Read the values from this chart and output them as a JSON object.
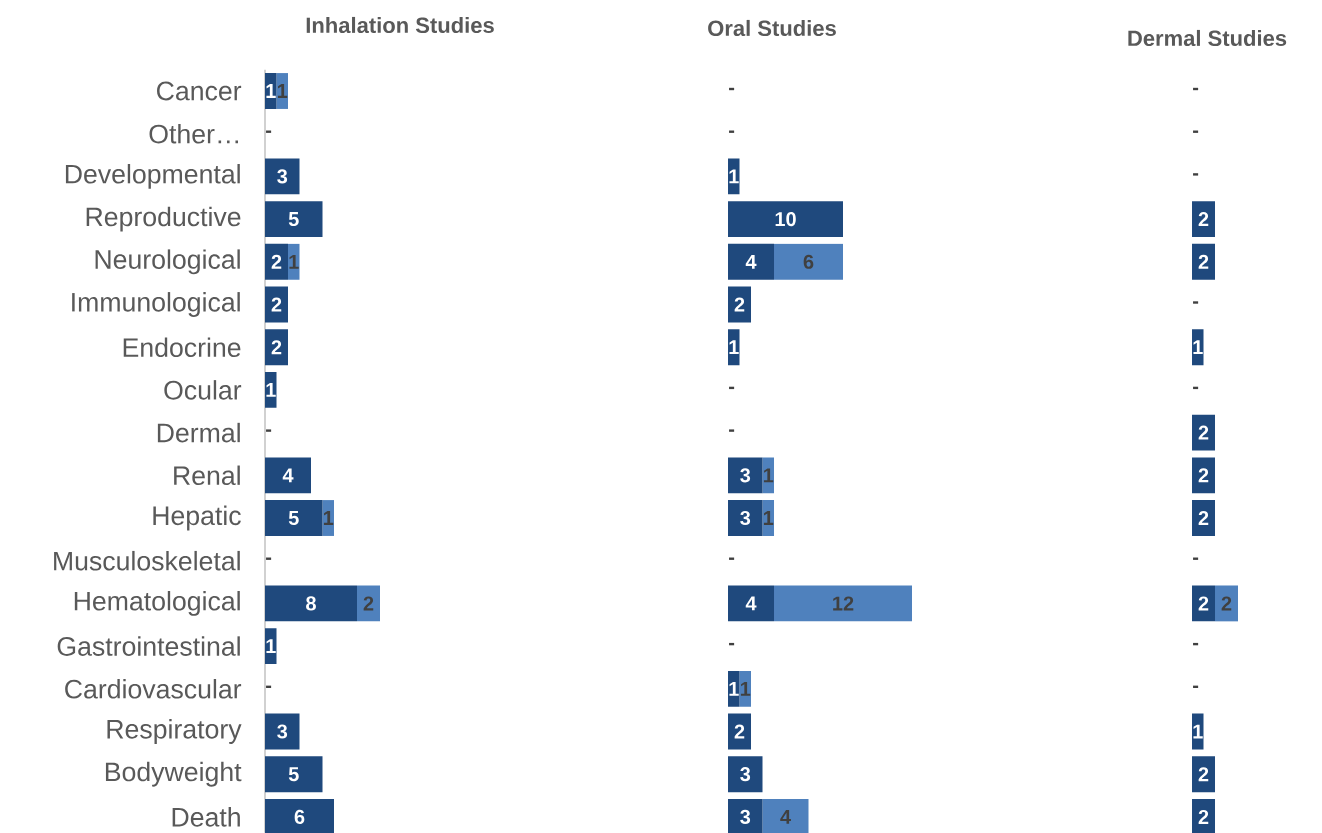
{
  "chart_data": [
    {
      "type": "bar",
      "orientation": "horizontal",
      "stacked": true,
      "title": "Inhalation Studies",
      "tick_labels": "y",
      "categories": [
        "Cancer",
        "Other…",
        "Developmental",
        "Reproductive",
        "Neurological",
        "Immunological",
        "Endocrine",
        "Ocular",
        "Dermal",
        "Renal",
        "Hepatic",
        "Musculoskeletal",
        "Hematological",
        "Gastrointestinal",
        "Cardiovascular",
        "Respiratory",
        "Bodyweight",
        "Death"
      ],
      "series": [
        {
          "color": "#1f497d",
          "values": [
            1,
            0,
            3,
            5,
            2,
            2,
            2,
            1,
            0,
            4,
            5,
            0,
            8,
            1,
            0,
            3,
            5,
            6
          ],
          "value_labels": [
            "1",
            "-",
            "3",
            "5",
            "2",
            "2",
            "2",
            "1",
            "-",
            "4",
            "5",
            "-",
            "8",
            "1",
            "-",
            "3",
            "5",
            "6"
          ]
        },
        {
          "color": "#4f81bd",
          "values": [
            1,
            0,
            0,
            0,
            1,
            0,
            0,
            0,
            0,
            0,
            1,
            0,
            2,
            0,
            0,
            0,
            0,
            0
          ],
          "value_labels": [
            "1",
            null,
            null,
            null,
            "1",
            null,
            null,
            null,
            null,
            null,
            "1",
            null,
            "2",
            null,
            null,
            null,
            null,
            null
          ]
        }
      ]
    },
    {
      "type": "bar",
      "orientation": "horizontal",
      "stacked": true,
      "title": "Oral Studies",
      "tick_labels": false,
      "categories": [
        null,
        null,
        null,
        null,
        null,
        null,
        null,
        null,
        null,
        null,
        null,
        null,
        null,
        null,
        null,
        null,
        null,
        null
      ],
      "series": [
        {
          "color": "#1f497d",
          "values": [
            0,
            0,
            1,
            10,
            4,
            2,
            1,
            0,
            0,
            3,
            3,
            0,
            4,
            0,
            1,
            2,
            3,
            3
          ],
          "value_labels": [
            "-",
            "-",
            "1",
            "10",
            "4",
            "2",
            "1",
            "-",
            "-",
            "3",
            "3",
            "-",
            "4",
            "-",
            "1",
            "2",
            "3",
            "3"
          ]
        },
        {
          "color": "#4f81bd",
          "values": [
            0,
            0,
            0,
            0,
            6,
            0,
            0,
            0,
            0,
            1,
            1,
            0,
            12,
            0,
            1,
            0,
            0,
            4
          ],
          "value_labels": [
            null,
            null,
            null,
            null,
            "6",
            null,
            null,
            null,
            null,
            "1",
            "1",
            null,
            "12",
            null,
            "1",
            null,
            null,
            "4"
          ]
        }
      ]
    },
    {
      "type": "bar",
      "orientation": "horizontal",
      "stacked": true,
      "title": "Dermal Studies",
      "tick_labels": false,
      "categories": [
        null,
        null,
        null,
        null,
        null,
        null,
        null,
        null,
        null,
        null,
        null,
        null,
        null,
        null,
        null,
        null,
        null,
        null
      ],
      "series": [
        {
          "color": "#1f497d",
          "values": [
            0,
            0,
            0,
            2,
            2,
            0,
            1,
            0,
            2,
            2,
            2,
            0,
            2,
            0,
            0,
            1,
            2,
            2
          ],
          "value_labels": [
            "-",
            "-",
            "-",
            "2",
            "2",
            "-",
            "1",
            "-",
            "2",
            "2",
            "2",
            "-",
            "2",
            "-",
            "-",
            "1",
            "2",
            "2"
          ]
        },
        {
          "color": "#4f81bd",
          "values": [
            0,
            0,
            0,
            0,
            0,
            0,
            0,
            0,
            0,
            0,
            0,
            0,
            2,
            0,
            0,
            0,
            0,
            0
          ],
          "value_labels": [
            null,
            null,
            null,
            null,
            null,
            null,
            null,
            null,
            null,
            null,
            null,
            null,
            "2",
            null,
            null,
            null,
            null,
            null
          ]
        }
      ]
    }
  ]
}
